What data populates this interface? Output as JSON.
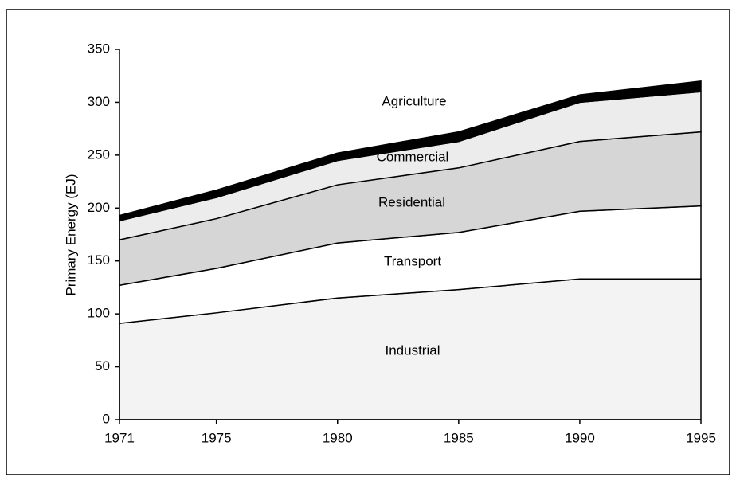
{
  "chart_data": {
    "type": "stacked_area",
    "y_label": "Primary Energy (EJ)",
    "x": [
      1971,
      1975,
      1980,
      1985,
      1990,
      1995
    ],
    "xlim": [
      1971,
      1995
    ],
    "xticks": [
      1971,
      1975,
      1980,
      1985,
      1990,
      1995
    ],
    "ylim": [
      0,
      350
    ],
    "yticks": [
      0,
      50,
      100,
      150,
      200,
      250,
      300,
      350
    ],
    "series": [
      {
        "name": "Industrial",
        "color": "#f3f3f3",
        "values": [
          91,
          101,
          115,
          123,
          133,
          133
        ]
      },
      {
        "name": "Transport",
        "color": "#ffffff",
        "values": [
          36,
          42,
          52,
          54,
          64,
          69
        ]
      },
      {
        "name": "Residential",
        "color": "#d6d6d6",
        "values": [
          43,
          47,
          55,
          61,
          66,
          70
        ]
      },
      {
        "name": "Commercial",
        "color": "#ececec",
        "values": [
          18,
          20,
          23,
          25,
          37,
          38
        ]
      },
      {
        "name": "Agriculture",
        "color": "#000000",
        "values": [
          5,
          7,
          7,
          9,
          7,
          10
        ]
      }
    ]
  }
}
